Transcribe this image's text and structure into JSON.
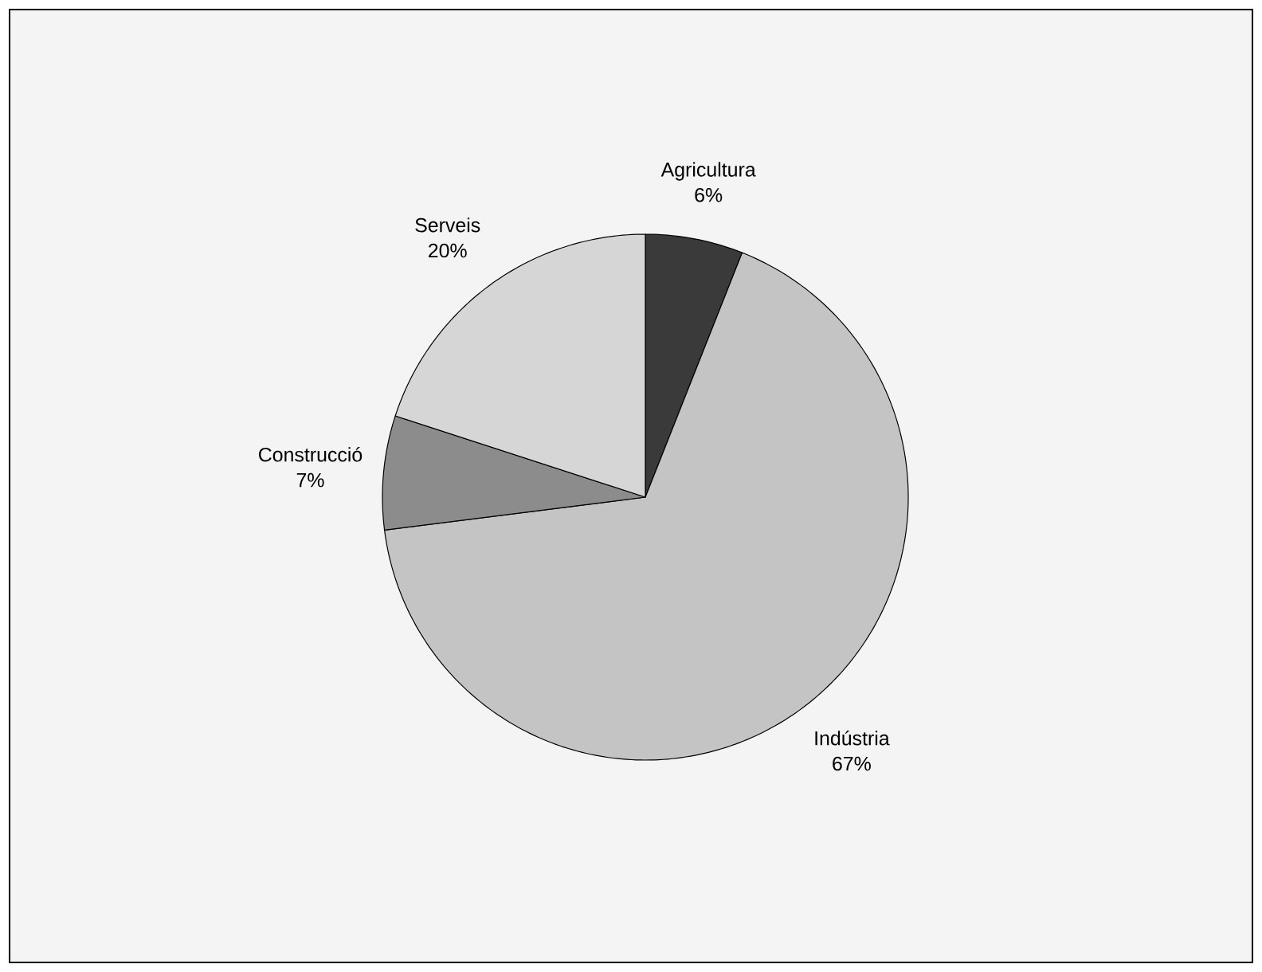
{
  "chart_data": {
    "type": "pie",
    "categories": [
      "Agricultura",
      "Indústria",
      "Construcció",
      "Serveis"
    ],
    "values": [
      6,
      67,
      7,
      20
    ],
    "value_labels": [
      "6%",
      "67%",
      "7%",
      "20%"
    ],
    "colors": [
      "#3a3a3a",
      "#c4c4c4",
      "#8c8c8c",
      "#d6d6d6"
    ]
  }
}
